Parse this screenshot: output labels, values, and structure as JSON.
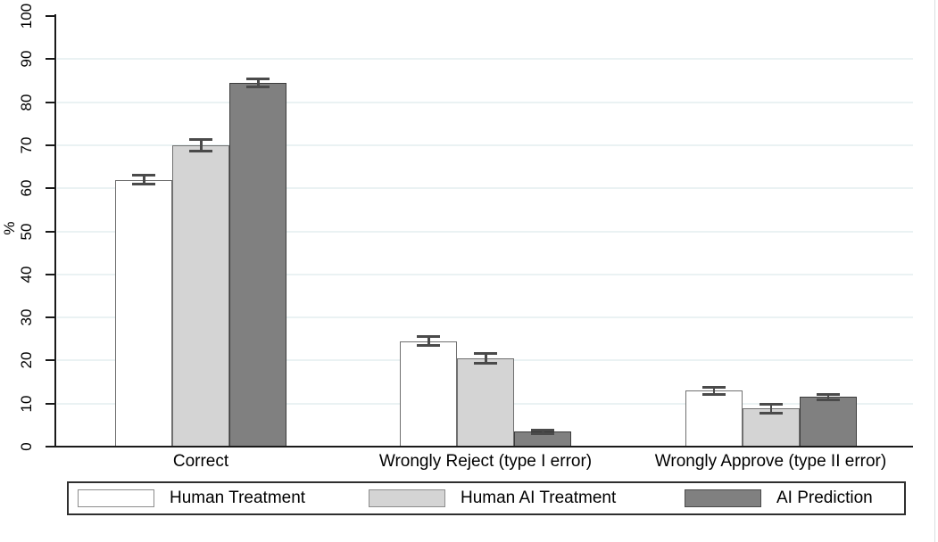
{
  "figure_title": "",
  "chart_data": {
    "type": "bar",
    "title": "",
    "xlabel": "",
    "ylabel": "%",
    "ylim": [
      0,
      100
    ],
    "yticks": [
      0,
      10,
      20,
      30,
      40,
      50,
      60,
      70,
      80,
      90,
      100
    ],
    "grid": true,
    "gridline_color": "#eaf2f3",
    "error_bar_color": "#4a4a4a",
    "legend_position": "bottom",
    "categories": [
      "Correct",
      "Wrongly Reject (type I error)",
      "Wrongly Approve (type II error)"
    ],
    "series": [
      {
        "name": "Human Treatment",
        "fill": "#ffffff",
        "outline": "#707070",
        "values": [
          62,
          24.5,
          13
        ],
        "errors": [
          1.1,
          1.0,
          0.8
        ]
      },
      {
        "name": "Human AI Treatment",
        "fill": "#d4d4d4",
        "outline": "#707070",
        "values": [
          70,
          20.5,
          8.8
        ],
        "errors": [
          1.3,
          1.2,
          1.0
        ]
      },
      {
        "name": "AI Prediction",
        "fill": "#808080",
        "outline": "#3c3c3c",
        "values": [
          84.5,
          3.5,
          11.5
        ],
        "errors": [
          0.9,
          0.4,
          0.7
        ]
      }
    ]
  }
}
